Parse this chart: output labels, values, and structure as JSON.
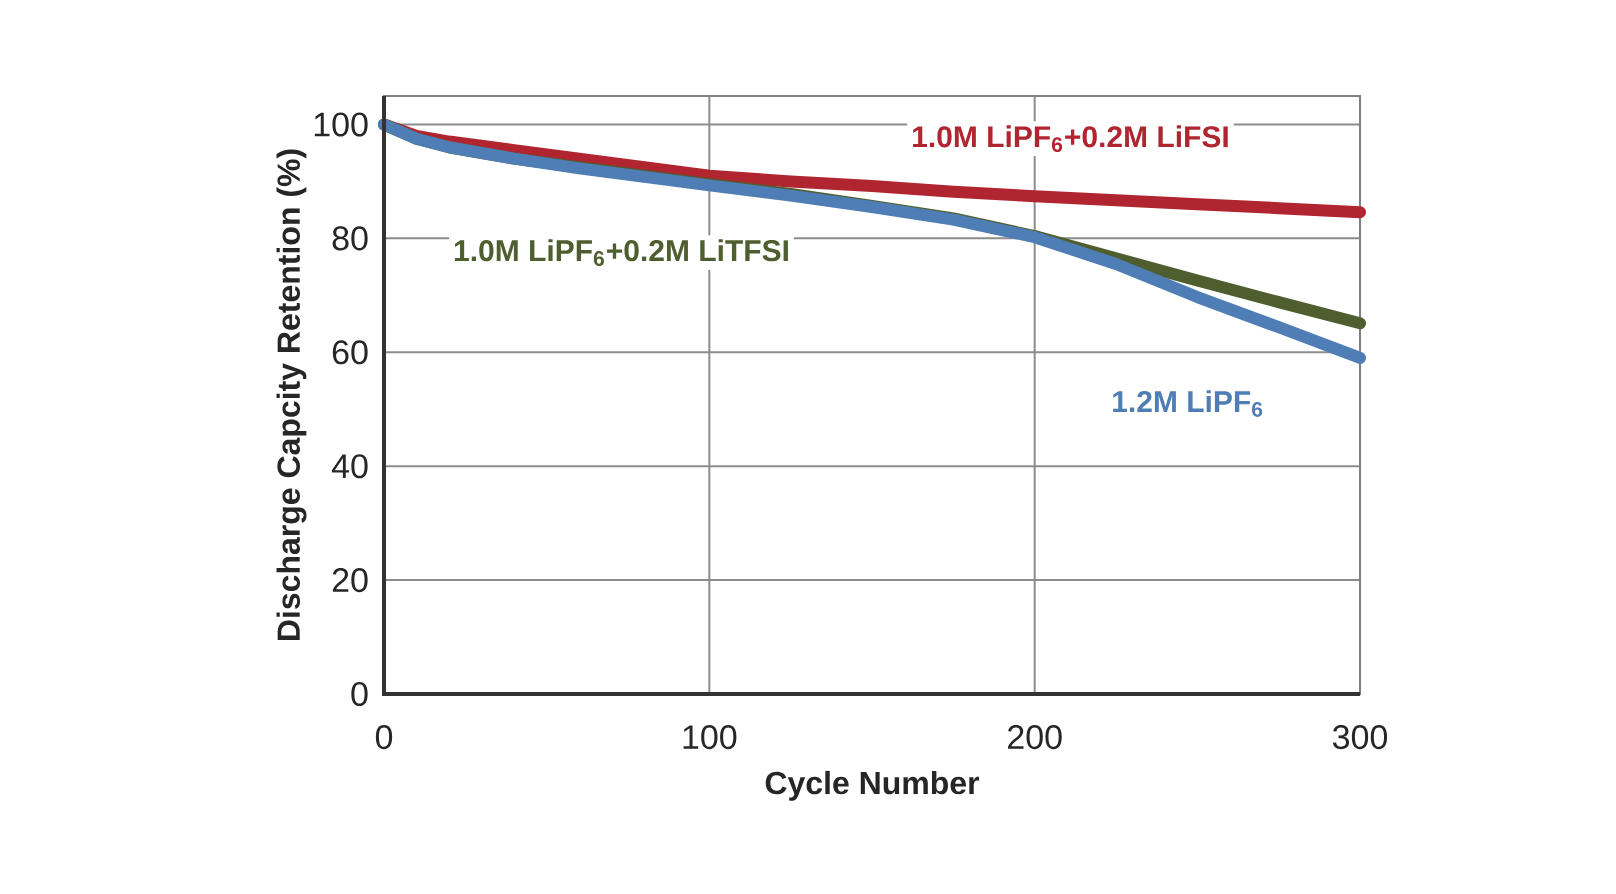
{
  "chart_data": {
    "type": "line",
    "xlabel": "Cycle Number",
    "ylabel": "Discharge Capcity Retention (%)",
    "xlim": [
      0,
      300
    ],
    "ylim": [
      0,
      105
    ],
    "xticks": [
      0,
      100,
      200,
      300
    ],
    "yticks": [
      0,
      20,
      40,
      60,
      80,
      100
    ],
    "grid": true,
    "series": [
      {
        "name": "1.0M LiPF$_{6}$+0.2M LiFSI",
        "color": "#b0252f",
        "x": [
          0,
          10,
          20,
          40,
          60,
          80,
          100,
          125,
          150,
          175,
          200,
          225,
          250,
          275,
          300
        ],
        "values": [
          100,
          98,
          97,
          95.5,
          94,
          92.5,
          91,
          90,
          89.2,
          88.2,
          87.4,
          86.7,
          86,
          85.3,
          84.6
        ]
      },
      {
        "name": "1.0M LiPF$_{6}$+0.2M LiTFSI",
        "color": "#4f5e2e",
        "x": [
          0,
          10,
          20,
          40,
          60,
          80,
          100,
          125,
          150,
          175,
          200,
          225,
          250,
          275,
          300
        ],
        "values": [
          100,
          97.5,
          96,
          94,
          92.5,
          91,
          89.5,
          87.8,
          85.7,
          83.5,
          80.4,
          76.5,
          72.6,
          68.8,
          65.1
        ]
      },
      {
        "name": "1.2M LiPF$_{6}$",
        "color": "#4f7db5",
        "x": [
          0,
          10,
          20,
          40,
          60,
          80,
          100,
          125,
          150,
          175,
          200,
          225,
          250,
          275,
          300
        ],
        "values": [
          100,
          97.5,
          96,
          94,
          92.3,
          90.8,
          89.3,
          87.5,
          85.5,
          83.3,
          80.2,
          75.5,
          69.7,
          64.4,
          59
        ]
      }
    ]
  }
}
